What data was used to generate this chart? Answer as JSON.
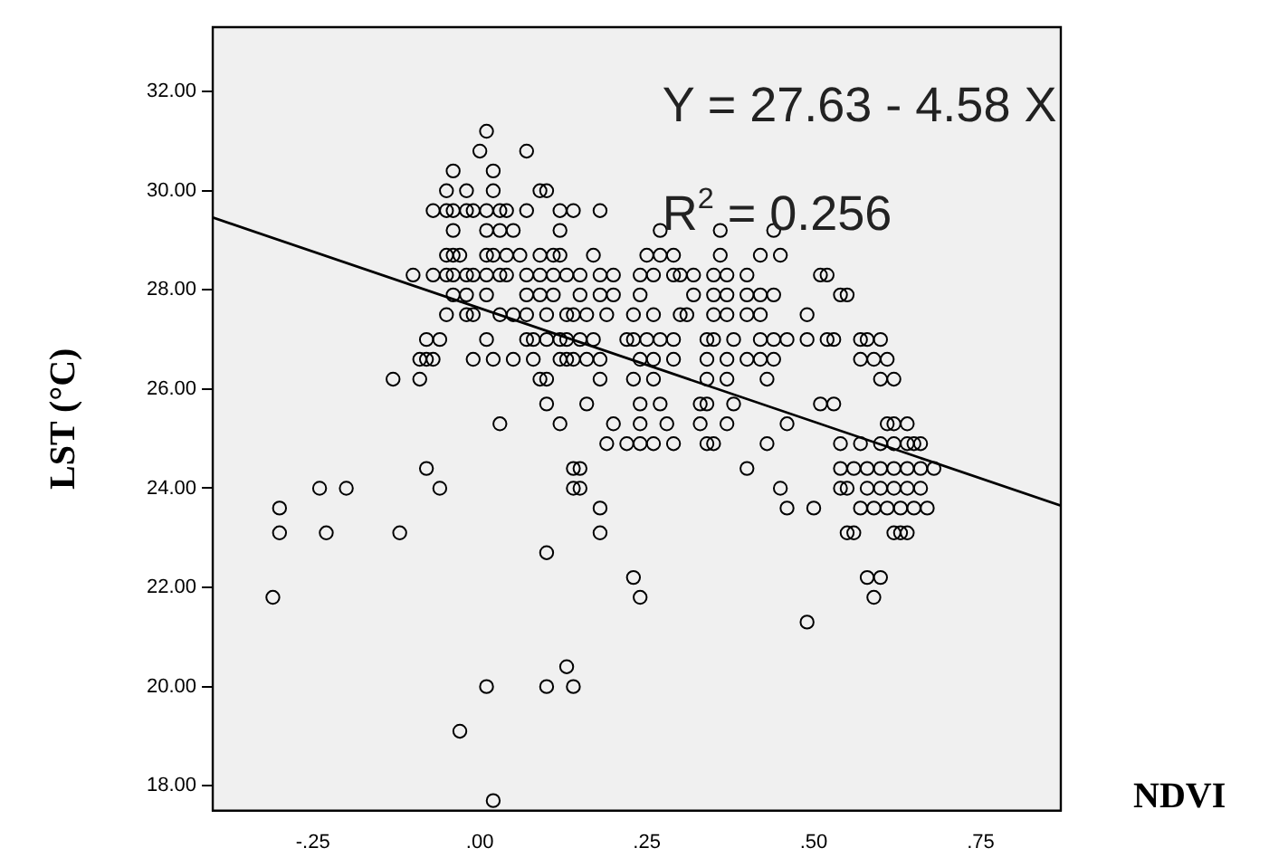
{
  "chart_data": {
    "type": "scatter",
    "ylabel": "LST (°C)",
    "xlabel": "NDVI",
    "annotations": [
      "Y = 27.63 - 4.58 X",
      "R$^{2}$ = 0.256"
    ],
    "xlim": [
      -0.4,
      0.87
    ],
    "ylim": [
      17.5,
      33.3
    ],
    "xticks": [
      {
        "value": -0.25,
        "label": "-.25"
      },
      {
        "value": 0,
        "label": ".00"
      },
      {
        "value": 0.25,
        "label": ".25"
      },
      {
        "value": 0.5,
        "label": ".50"
      },
      {
        "value": 0.75,
        "label": ".75"
      }
    ],
    "yticks": [
      {
        "value": 18,
        "label": "18.00"
      },
      {
        "value": 20,
        "label": "20.00"
      },
      {
        "value": 22,
        "label": "22.00"
      },
      {
        "value": 24,
        "label": "24.00"
      },
      {
        "value": 26,
        "label": "26.00"
      },
      {
        "value": 28,
        "label": "28.00"
      },
      {
        "value": 30,
        "label": "30.00"
      },
      {
        "value": 32,
        "label": "32.00"
      }
    ],
    "grid": false,
    "legend": false,
    "series": [
      {
        "marker": "circle",
        "color": "#000000",
        "x": [
          0.01,
          0.0,
          0.07,
          -0.04,
          0.02,
          -0.05,
          -0.02,
          0.02,
          0.09,
          0.1,
          -0.07,
          -0.05,
          -0.04,
          -0.02,
          -0.01,
          0.01,
          0.03,
          0.04,
          0.07,
          0.12,
          0.14,
          0.18,
          -0.04,
          0.01,
          0.03,
          0.05,
          0.12,
          0.27,
          0.36,
          0.44,
          -0.05,
          -0.04,
          -0.03,
          0.01,
          0.02,
          0.04,
          0.06,
          0.09,
          0.11,
          0.12,
          0.17,
          0.25,
          0.27,
          0.29,
          0.36,
          0.42,
          0.45,
          -0.1,
          -0.07,
          -0.05,
          -0.04,
          -0.02,
          -0.01,
          0.01,
          0.03,
          0.04,
          0.07,
          0.09,
          0.11,
          0.13,
          0.15,
          0.18,
          0.2,
          0.24,
          0.26,
          0.29,
          0.3,
          0.32,
          0.35,
          0.37,
          0.4,
          0.51,
          0.52,
          -0.04,
          -0.02,
          0.01,
          0.07,
          0.09,
          0.11,
          0.15,
          0.18,
          0.2,
          0.24,
          0.32,
          0.35,
          0.37,
          0.4,
          0.42,
          0.44,
          0.54,
          0.55,
          -0.05,
          -0.02,
          -0.01,
          0.03,
          0.05,
          0.07,
          0.1,
          0.13,
          0.14,
          0.16,
          0.19,
          0.23,
          0.26,
          0.3,
          0.31,
          0.35,
          0.37,
          0.4,
          0.42,
          0.49,
          -0.08,
          -0.06,
          0.01,
          0.07,
          0.08,
          0.1,
          0.12,
          0.13,
          0.15,
          0.17,
          0.22,
          0.23,
          0.25,
          0.27,
          0.29,
          0.34,
          0.35,
          0.38,
          0.42,
          0.44,
          0.46,
          0.49,
          0.52,
          0.53,
          0.57,
          0.58,
          0.6,
          -0.09,
          -0.08,
          -0.07,
          -0.01,
          0.02,
          0.05,
          0.08,
          0.12,
          0.13,
          0.14,
          0.16,
          0.18,
          0.24,
          0.26,
          0.29,
          0.34,
          0.37,
          0.4,
          0.42,
          0.44,
          0.57,
          0.59,
          0.61,
          -0.13,
          -0.09,
          0.09,
          0.1,
          0.18,
          0.23,
          0.26,
          0.34,
          0.37,
          0.43,
          0.6,
          0.62,
          0.1,
          0.16,
          0.24,
          0.27,
          0.33,
          0.34,
          0.38,
          0.51,
          0.53,
          0.03,
          0.12,
          0.2,
          0.24,
          0.28,
          0.33,
          0.37,
          0.46,
          0.61,
          0.62,
          0.64,
          0.19,
          0.22,
          0.24,
          0.26,
          0.29,
          0.34,
          0.35,
          0.43,
          0.54,
          0.57,
          0.6,
          0.62,
          0.64,
          0.65,
          0.66,
          -0.08,
          0.14,
          0.15,
          0.4,
          0.54,
          0.56,
          0.58,
          0.6,
          0.62,
          0.64,
          0.66,
          0.68,
          -0.24,
          -0.2,
          -0.06,
          0.14,
          0.15,
          0.45,
          0.54,
          0.55,
          0.58,
          0.6,
          0.62,
          0.64,
          0.66,
          -0.3,
          0.18,
          0.46,
          0.5,
          0.57,
          0.59,
          0.61,
          0.63,
          0.65,
          0.67,
          -0.3,
          -0.23,
          -0.12,
          0.18,
          0.55,
          0.56,
          0.62,
          0.63,
          0.64,
          0.1,
          0.23,
          0.58,
          0.6,
          -0.31,
          0.24,
          0.59,
          0.49,
          0.13,
          0.01,
          0.1,
          0.14,
          -0.03,
          0.02
        ],
        "values": [
          31.2,
          30.8,
          30.8,
          30.4,
          30.4,
          30.0,
          30.0,
          30.0,
          30.0,
          30.0,
          29.6,
          29.6,
          29.6,
          29.6,
          29.6,
          29.6,
          29.6,
          29.6,
          29.6,
          29.6,
          29.6,
          29.6,
          29.2,
          29.2,
          29.2,
          29.2,
          29.2,
          29.2,
          29.2,
          29.2,
          28.7,
          28.7,
          28.7,
          28.7,
          28.7,
          28.7,
          28.7,
          28.7,
          28.7,
          28.7,
          28.7,
          28.7,
          28.7,
          28.7,
          28.7,
          28.7,
          28.7,
          28.3,
          28.3,
          28.3,
          28.3,
          28.3,
          28.3,
          28.3,
          28.3,
          28.3,
          28.3,
          28.3,
          28.3,
          28.3,
          28.3,
          28.3,
          28.3,
          28.3,
          28.3,
          28.3,
          28.3,
          28.3,
          28.3,
          28.3,
          28.3,
          28.3,
          28.3,
          27.9,
          27.9,
          27.9,
          27.9,
          27.9,
          27.9,
          27.9,
          27.9,
          27.9,
          27.9,
          27.9,
          27.9,
          27.9,
          27.9,
          27.9,
          27.9,
          27.9,
          27.9,
          27.5,
          27.5,
          27.5,
          27.5,
          27.5,
          27.5,
          27.5,
          27.5,
          27.5,
          27.5,
          27.5,
          27.5,
          27.5,
          27.5,
          27.5,
          27.5,
          27.5,
          27.5,
          27.5,
          27.5,
          27.0,
          27.0,
          27.0,
          27.0,
          27.0,
          27.0,
          27.0,
          27.0,
          27.0,
          27.0,
          27.0,
          27.0,
          27.0,
          27.0,
          27.0,
          27.0,
          27.0,
          27.0,
          27.0,
          27.0,
          27.0,
          27.0,
          27.0,
          27.0,
          27.0,
          27.0,
          27.0,
          26.6,
          26.6,
          26.6,
          26.6,
          26.6,
          26.6,
          26.6,
          26.6,
          26.6,
          26.6,
          26.6,
          26.6,
          26.6,
          26.6,
          26.6,
          26.6,
          26.6,
          26.6,
          26.6,
          26.6,
          26.6,
          26.6,
          26.6,
          26.2,
          26.2,
          26.2,
          26.2,
          26.2,
          26.2,
          26.2,
          26.2,
          26.2,
          26.2,
          26.2,
          26.2,
          25.7,
          25.7,
          25.7,
          25.7,
          25.7,
          25.7,
          25.7,
          25.7,
          25.7,
          25.3,
          25.3,
          25.3,
          25.3,
          25.3,
          25.3,
          25.3,
          25.3,
          25.3,
          25.3,
          25.3,
          24.9,
          24.9,
          24.9,
          24.9,
          24.9,
          24.9,
          24.9,
          24.9,
          24.9,
          24.9,
          24.9,
          24.9,
          24.9,
          24.9,
          24.9,
          24.4,
          24.4,
          24.4,
          24.4,
          24.4,
          24.4,
          24.4,
          24.4,
          24.4,
          24.4,
          24.4,
          24.4,
          24.0,
          24.0,
          24.0,
          24.0,
          24.0,
          24.0,
          24.0,
          24.0,
          24.0,
          24.0,
          24.0,
          24.0,
          24.0,
          23.6,
          23.6,
          23.6,
          23.6,
          23.6,
          23.6,
          23.6,
          23.6,
          23.6,
          23.6,
          23.1,
          23.1,
          23.1,
          23.1,
          23.1,
          23.1,
          23.1,
          23.1,
          23.1,
          22.7,
          22.2,
          22.2,
          22.2,
          21.8,
          21.8,
          21.8,
          21.3,
          20.4,
          20.0,
          20.0,
          20.0,
          19.1,
          17.7
        ]
      },
      {
        "type": "line",
        "marker": "none",
        "color": "#000000",
        "x": [
          -0.4,
          0.87
        ],
        "values": [
          29.46,
          23.65
        ]
      }
    ]
  }
}
